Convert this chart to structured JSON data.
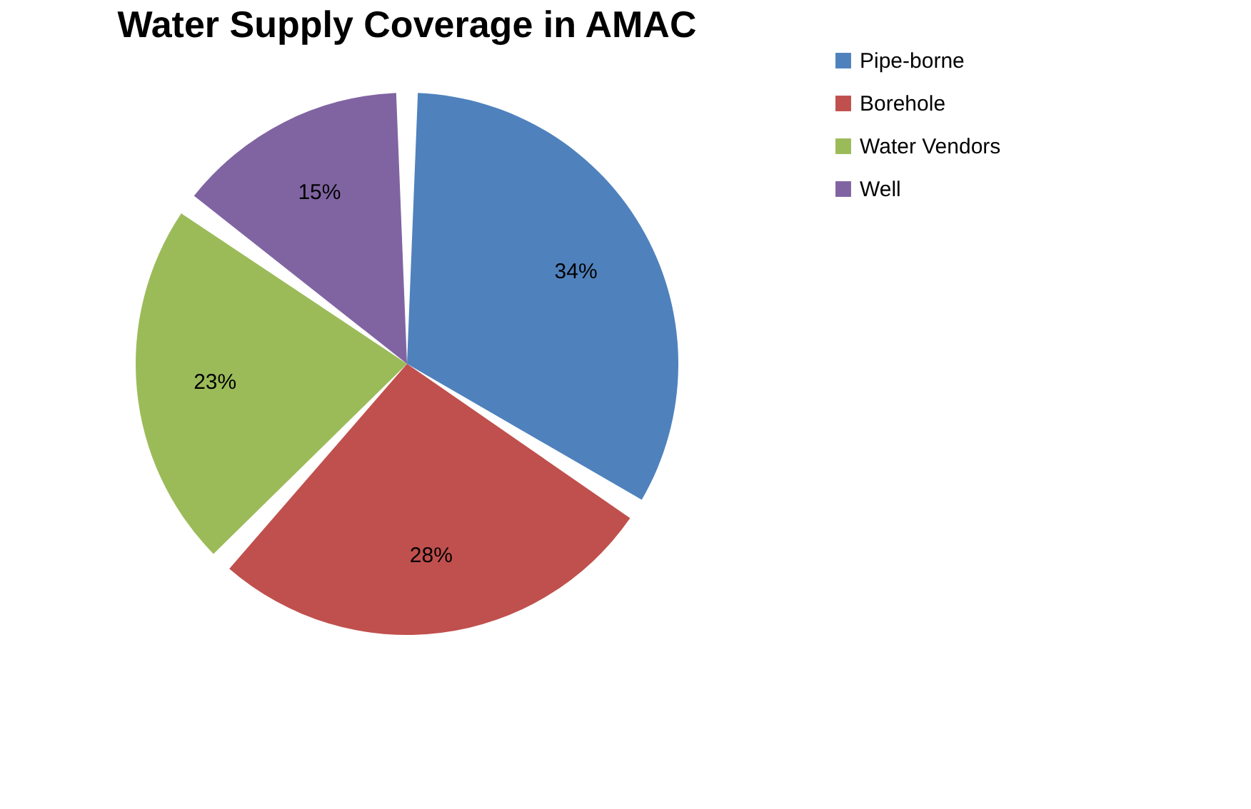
{
  "chart_data": {
    "type": "pie",
    "title": "Water Supply Coverage in AMAC",
    "categories": [
      "Pipe-borne",
      "Borehole",
      "Water Vendors",
      "Well"
    ],
    "values": [
      34,
      28,
      23,
      15
    ],
    "colors": [
      "#4f81bd",
      "#c0504d",
      "#9bbb59",
      "#8064a2"
    ],
    "value_labels": [
      "34%",
      "28%",
      "23%",
      "15%"
    ],
    "legend": "right"
  }
}
